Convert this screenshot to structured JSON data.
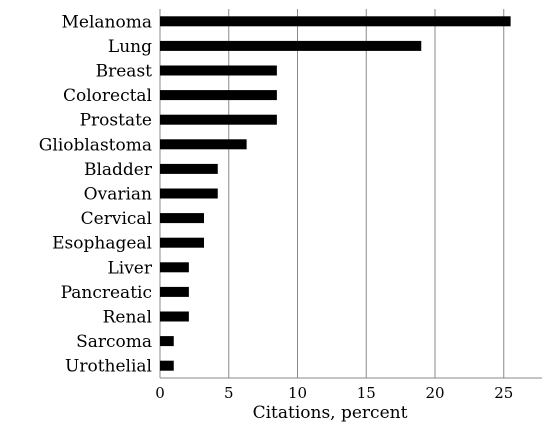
{
  "chart_data": {
    "type": "bar",
    "orientation": "horizontal",
    "categories": [
      "Melanoma",
      "Lung",
      "Breast",
      "Colorectal",
      "Prostate",
      "Glioblastoma",
      "Bladder",
      "Ovarian",
      "Cervical",
      "Esophageal",
      "Liver",
      "Pancreatic",
      "Renal",
      "Sarcoma",
      "Urothelial"
    ],
    "values": [
      25.5,
      19.0,
      8.5,
      8.5,
      8.5,
      6.3,
      4.2,
      4.2,
      3.2,
      3.2,
      2.1,
      2.1,
      2.1,
      1.0,
      1.0
    ],
    "title": "",
    "xlabel": "Citations,  percent",
    "ylabel": "",
    "xlim": [
      0,
      27
    ],
    "xticks": [
      0,
      5,
      10,
      15,
      20,
      25
    ],
    "grid": "vertical",
    "bar_color": "#000000"
  }
}
